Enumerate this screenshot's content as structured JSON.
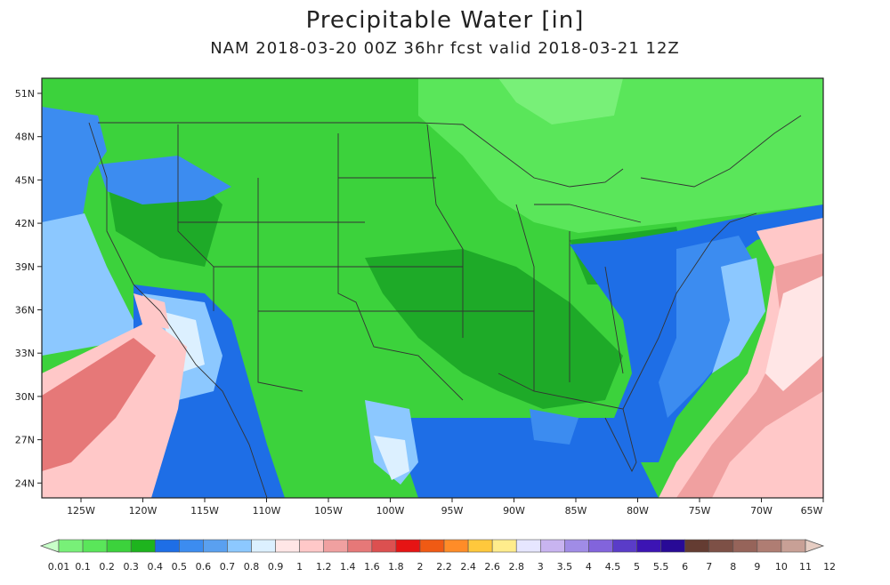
{
  "title": "Precipitable Water [in]",
  "subtitle": "NAM 2018-03-20 00Z 36hr fcst valid 2018-03-21 12Z",
  "lat_labels": [
    "51N",
    "48N",
    "45N",
    "42N",
    "39N",
    "36N",
    "33N",
    "30N",
    "27N",
    "24N"
  ],
  "lon_labels": [
    "125W",
    "120W",
    "115W",
    "110W",
    "105W",
    "100W",
    "95W",
    "90W",
    "85W",
    "80W",
    "75W",
    "70W",
    "65W"
  ],
  "colorbar": {
    "levels": [
      "0.01",
      "0.1",
      "0.2",
      "0.3",
      "0.4",
      "0.5",
      "0.6",
      "0.7",
      "0.8",
      "0.9",
      "1",
      "1.2",
      "1.4",
      "1.6",
      "1.8",
      "2",
      "2.2",
      "2.4",
      "2.6",
      "2.8",
      "3",
      "3.5",
      "4",
      "4.5",
      "5",
      "5.5",
      "6",
      "7",
      "8",
      "9",
      "10",
      "11",
      "12"
    ],
    "colors": [
      "#c8ffc8",
      "#78f078",
      "#5ae65a",
      "#3cd23c",
      "#1eb41e",
      "#1e6ee6",
      "#3c8cf0",
      "#5aa0f0",
      "#8cc8ff",
      "#dcf0ff",
      "#ffe6e6",
      "#ffc8c8",
      "#f0a0a0",
      "#e67878",
      "#dc5050",
      "#e61414",
      "#f05a14",
      "#ff8c28",
      "#ffc83c",
      "#ffec8c",
      "#e6e6ff",
      "#c8b4f0",
      "#a08ce6",
      "#8264dc",
      "#5a3cc8",
      "#3c14b4",
      "#280a96",
      "#643c32",
      "#7d5046",
      "#96645a",
      "#af7d73",
      "#c8a096",
      "#e6cdc3"
    ]
  },
  "palette": {
    "green_dark": "#1eaa28",
    "green_mid": "#3cd23c",
    "green_light": "#5ae65a",
    "green_pale": "#78f078",
    "blue_dark": "#1e6ee6",
    "blue_mid": "#3c8cf0",
    "blue_light": "#8cc8ff",
    "blue_pale": "#dcf0ff",
    "pink_pale": "#ffe6e6",
    "pink": "#ffc8c8",
    "red_light": "#f0a0a0",
    "red": "#e67878"
  }
}
